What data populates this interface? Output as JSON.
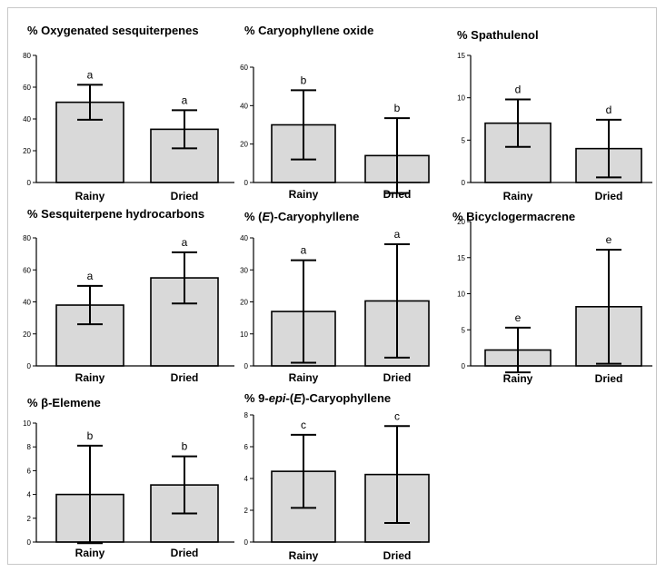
{
  "chart_data": [
    {
      "type": "bar",
      "title": "%  Oxygenated sesquiterpenes",
      "title_parts": [
        {
          "text": "%  Oxygenated sesquiterpenes",
          "style": "normal"
        }
      ],
      "categories": [
        "Rainy",
        "Dried"
      ],
      "values": [
        50.5,
        33.5
      ],
      "error": [
        11,
        12
      ],
      "letters": [
        "a",
        "a"
      ],
      "ylim": [
        0,
        80
      ],
      "yticks": [
        0,
        20,
        40,
        60,
        80
      ]
    },
    {
      "type": "bar",
      "title": "%  Caryophyllene oxide",
      "title_parts": [
        {
          "text": "%  Caryophyllene oxide",
          "style": "normal"
        }
      ],
      "categories": [
        "Rainy",
        "Dried"
      ],
      "values": [
        30,
        14
      ],
      "error": [
        18,
        19.5
      ],
      "letters": [
        "b",
        "b"
      ],
      "ylim": [
        0,
        60
      ],
      "yticks": [
        0,
        20,
        40,
        60
      ]
    },
    {
      "type": "bar",
      "title": "%  Spathulenol",
      "title_parts": [
        {
          "text": "%  Spathulenol",
          "style": "normal"
        }
      ],
      "categories": [
        "Rainy",
        "Dried"
      ],
      "values": [
        7,
        4
      ],
      "error": [
        2.8,
        3.4
      ],
      "letters": [
        "d",
        "d"
      ],
      "ylim": [
        0,
        15
      ],
      "yticks": [
        0,
        5,
        10,
        15
      ]
    },
    {
      "type": "bar",
      "title": "%  Sesquiterpene hydrocarbons",
      "title_parts": [
        {
          "text": "%  Sesquiterpene hydrocarbons",
          "style": "normal"
        }
      ],
      "categories": [
        "Rainy",
        "Dried"
      ],
      "values": [
        38,
        55
      ],
      "error": [
        12,
        16
      ],
      "letters": [
        "a",
        "a"
      ],
      "ylim": [
        0,
        80
      ],
      "yticks": [
        0,
        20,
        40,
        60,
        80
      ]
    },
    {
      "type": "bar",
      "title": "%  (E)-Caryophyllene",
      "title_parts": [
        {
          "text": "%  (",
          "style": "normal"
        },
        {
          "text": "E",
          "style": "italic"
        },
        {
          "text": ")-Caryophyllene",
          "style": "normal"
        }
      ],
      "categories": [
        "Rainy",
        "Dried"
      ],
      "values": [
        17,
        20.3
      ],
      "error": [
        16,
        17.7
      ],
      "letters": [
        "a",
        "a"
      ],
      "ylim": [
        0,
        40
      ],
      "yticks": [
        0,
        10,
        20,
        30,
        40
      ]
    },
    {
      "type": "bar",
      "title": "% Bicyclogermacrene",
      "title_parts": [
        {
          "text": "% Bicyclogermacrene",
          "style": "normal"
        }
      ],
      "categories": [
        "Rainy",
        "Dried"
      ],
      "values": [
        2.2,
        8.2
      ],
      "error": [
        3.1,
        7.9
      ],
      "letters": [
        "e",
        "e"
      ],
      "ylim": [
        0,
        20
      ],
      "yticks": [
        0,
        5,
        10,
        15,
        20
      ]
    },
    {
      "type": "bar",
      "title": "%  β-Elemene",
      "title_parts": [
        {
          "text": "%  β-Elemene",
          "style": "normal"
        }
      ],
      "categories": [
        "Rainy",
        "Dried"
      ],
      "values": [
        4,
        4.8
      ],
      "error": [
        4.1,
        2.4
      ],
      "letters": [
        "b",
        "b"
      ],
      "ylim": [
        0,
        10
      ],
      "yticks": [
        0,
        2,
        4,
        6,
        8,
        10
      ]
    },
    {
      "type": "bar",
      "title": "%  9-epi-(E)-Caryophyllene",
      "title_parts": [
        {
          "text": "%  9-",
          "style": "normal"
        },
        {
          "text": "epi",
          "style": "italic"
        },
        {
          "text": "-(",
          "style": "normal"
        },
        {
          "text": "E",
          "style": "italic"
        },
        {
          "text": ")-Caryophyllene",
          "style": "normal"
        }
      ],
      "categories": [
        "Rainy",
        "Dried"
      ],
      "values": [
        4.45,
        4.25
      ],
      "error": [
        2.3,
        3.05
      ],
      "letters": [
        "c",
        "c"
      ],
      "ylim": [
        0,
        8
      ],
      "yticks": [
        0,
        2,
        4,
        6,
        8
      ]
    }
  ]
}
